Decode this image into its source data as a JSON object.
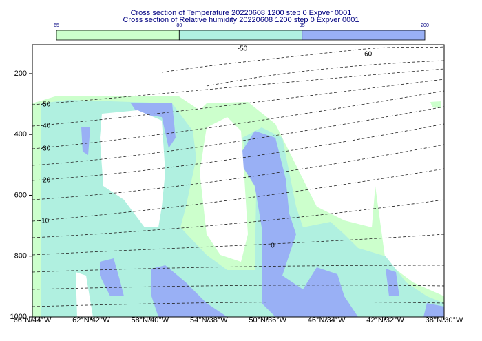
{
  "chart_data": {
    "type": "contour",
    "title": [
      "Cross section of Temperature 20220608 1200 step 0 Expver 0001",
      "Cross section of Relative humidity 20220608 1200 step 0 Expver 0001"
    ],
    "colorbar": {
      "levels": [
        65,
        80,
        95,
        200
      ],
      "colors": [
        "#ccffcc",
        "#b0f0e0",
        "#99b0f5"
      ]
    },
    "categories": [
      "66°N/44°W",
      "62°N/42°W",
      "58°N/40°W",
      "54°N/38°W",
      "50°N/36°W",
      "46°N/34°W",
      "42°N/32°W",
      "38°N/30°W"
    ],
    "ylim": [
      1000,
      105
    ],
    "yticks": [
      200,
      400,
      600,
      800,
      1000
    ],
    "contour_labels": [
      -50,
      -60,
      -50,
      -40,
      -30,
      -20,
      -10,
      0
    ]
  }
}
